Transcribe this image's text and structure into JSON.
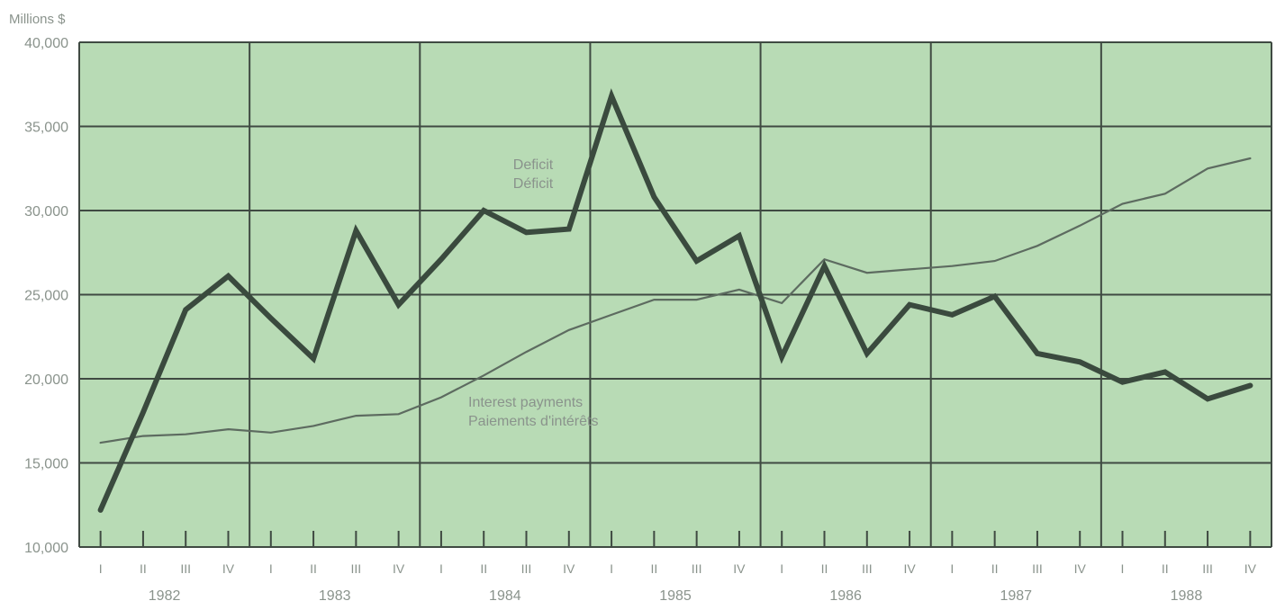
{
  "colors": {
    "plot_background": "#b8dbb5",
    "grid": "#3f4a42",
    "deficit_line": "#3a4a3e",
    "interest_line": "#5d6b60",
    "text": "#8a938c"
  },
  "chart_data": {
    "type": "line",
    "unit_label": "Millions $",
    "ylim": [
      10000,
      40000
    ],
    "yticks": [
      10000,
      15000,
      20000,
      25000,
      30000,
      35000,
      40000
    ],
    "ytick_labels": [
      "10,000",
      "15,000",
      "20,000",
      "25,000",
      "30,000",
      "35,000",
      "40,000"
    ],
    "grid": true,
    "quarter_labels": [
      "I",
      "II",
      "III",
      "IV",
      "I",
      "II",
      "III",
      "IV",
      "I",
      "II",
      "III",
      "IV",
      "I",
      "II",
      "III",
      "IV",
      "I",
      "II",
      "III",
      "IV",
      "I",
      "II",
      "III",
      "IV",
      "I",
      "II",
      "III",
      "IV"
    ],
    "years": [
      "1982",
      "1983",
      "1984",
      "1985",
      "1986",
      "1987",
      "1988"
    ],
    "series": [
      {
        "name": "Deficit / Déficit",
        "label_lines": [
          "Deficit",
          "Déficit"
        ],
        "style": "thick",
        "values": [
          12200,
          18000,
          24100,
          26100,
          23600,
          21200,
          28800,
          24400,
          27100,
          30000,
          28700,
          28900,
          36800,
          30800,
          27000,
          28500,
          21300,
          26700,
          21500,
          24400,
          23800,
          24900,
          21500,
          21000,
          19800,
          20400,
          18800,
          19600
        ]
      },
      {
        "name": "Interest payments / Paiements d'intérêts",
        "label_lines": [
          "Interest payments",
          "Paiements d'intérêts"
        ],
        "style": "thin",
        "values": [
          16200,
          16600,
          16700,
          17000,
          16800,
          17200,
          17800,
          17900,
          18900,
          20200,
          21600,
          22900,
          23800,
          24700,
          24700,
          25300,
          24500,
          27100,
          26300,
          26500,
          26700,
          27000,
          27900,
          29100,
          30400,
          31000,
          32500,
          33100
        ]
      }
    ]
  }
}
